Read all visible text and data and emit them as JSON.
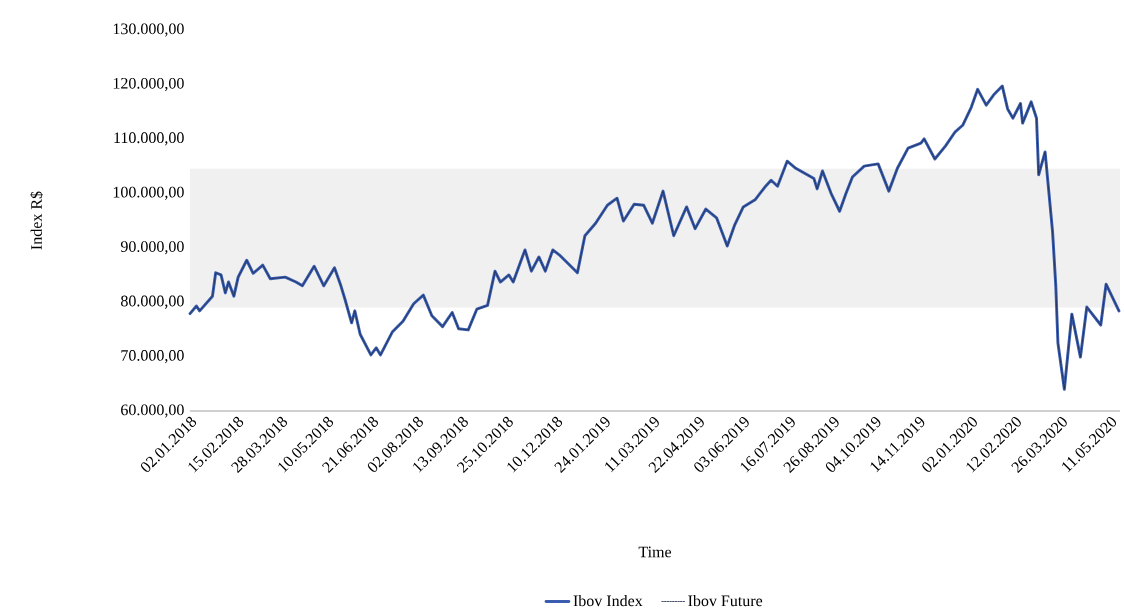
{
  "chart_data": {
    "type": "line",
    "xlabel": "Time",
    "ylabel": "Index R$",
    "legend": "bottom",
    "marker": "none",
    "x": [
      "2018-01-02",
      "2018-01-08",
      "2018-01-11",
      "2018-01-23",
      "2018-01-26",
      "2018-01-31",
      "2018-02-04",
      "2018-02-07",
      "2018-02-12",
      "2018-02-16",
      "2018-02-24",
      "2018-03-02",
      "2018-03-11",
      "2018-03-18",
      "2018-04-01",
      "2018-04-11",
      "2018-04-17",
      "2018-04-28",
      "2018-05-07",
      "2018-05-17",
      "2018-05-23",
      "2018-05-27",
      "2018-06-02",
      "2018-06-05",
      "2018-06-10",
      "2018-06-20",
      "2018-06-25",
      "2018-06-29",
      "2018-07-10",
      "2018-07-20",
      "2018-07-30",
      "2018-08-08",
      "2018-08-16",
      "2018-08-26",
      "2018-09-04",
      "2018-09-10",
      "2018-09-19",
      "2018-09-27",
      "2018-10-07",
      "2018-10-14",
      "2018-10-19",
      "2018-10-27",
      "2018-10-31",
      "2018-11-11",
      "2018-11-17",
      "2018-11-24",
      "2018-11-30",
      "2018-12-07",
      "2018-12-13",
      "2018-12-30",
      "2019-01-06",
      "2019-01-16",
      "2019-01-27",
      "2019-02-05",
      "2019-02-11",
      "2019-02-21",
      "2019-03-02",
      "2019-03-10",
      "2019-03-20",
      "2019-03-30",
      "2019-04-11",
      "2019-04-19",
      "2019-04-29",
      "2019-05-09",
      "2019-05-19",
      "2019-05-26",
      "2019-06-03",
      "2019-06-14",
      "2019-06-23",
      "2019-06-29",
      "2019-07-05",
      "2019-07-14",
      "2019-07-22",
      "2019-08-08",
      "2019-08-11",
      "2019-08-16",
      "2019-08-24",
      "2019-09-01",
      "2019-09-07",
      "2019-09-13",
      "2019-09-24",
      "2019-10-07",
      "2019-10-17",
      "2019-10-25",
      "2019-11-04",
      "2019-11-16",
      "2019-11-19",
      "2019-11-29",
      "2019-12-09",
      "2019-12-18",
      "2019-12-25",
      "2020-01-02",
      "2020-01-08",
      "2020-01-16",
      "2020-01-23",
      "2020-01-31",
      "2020-02-05",
      "2020-02-10",
      "2020-02-17",
      "2020-02-19",
      "2020-02-27",
      "2020-03-03",
      "2020-03-05",
      "2020-03-11",
      "2020-03-18",
      "2020-03-21",
      "2020-03-23",
      "2020-03-29",
      "2020-04-05",
      "2020-04-13",
      "2020-04-19",
      "2020-05-02",
      "2020-05-07",
      "2020-05-19"
    ],
    "series": [
      {
        "name": "Ibov Index",
        "color": "#3a5daf",
        "line_style": "solid",
        "values": [
          77900,
          79300,
          78400,
          81100,
          85400,
          85000,
          81700,
          83700,
          81100,
          84600,
          87700,
          85300,
          86800,
          84300,
          84600,
          83700,
          83000,
          86600,
          83000,
          86300,
          83000,
          80400,
          76200,
          78400,
          74100,
          70300,
          71600,
          70300,
          74500,
          76500,
          79700,
          81300,
          77500,
          75500,
          78100,
          75100,
          74900,
          78700,
          79400,
          85700,
          83700,
          85000,
          83700,
          89600,
          85700,
          88300,
          85700,
          89600,
          88700,
          85400,
          92200,
          94500,
          97800,
          99100,
          94900,
          98000,
          97800,
          94500,
          100400,
          92200,
          97500,
          93500,
          97100,
          95500,
          90300,
          94200,
          97500,
          98800,
          101100,
          102400,
          101300,
          105900,
          104600,
          102700,
          100800,
          104100,
          100000,
          96700,
          100000,
          103000,
          105000,
          105400,
          100400,
          104600,
          108300,
          109200,
          110000,
          106300,
          108700,
          111300,
          112500,
          115800,
          119100,
          116200,
          118100,
          119700,
          115500,
          113800,
          116500,
          112900,
          116800,
          113800,
          103400,
          107600,
          92900,
          83000,
          72500,
          64000,
          77800,
          69900,
          79100,
          75800,
          83300,
          78400
        ]
      },
      {
        "name": "Ibov Future",
        "color": "#1c2a4a",
        "line_style": "dashed",
        "values": [
          77900,
          79300,
          78400,
          81100,
          85400,
          85000,
          81700,
          83700,
          81100,
          84600,
          87700,
          85300,
          86800,
          84300,
          84600,
          83700,
          83000,
          86600,
          83000,
          86300,
          83000,
          80400,
          76200,
          78400,
          74100,
          70300,
          71600,
          70300,
          74500,
          76500,
          79700,
          81300,
          77500,
          75500,
          78100,
          75100,
          74900,
          78700,
          79400,
          85700,
          83700,
          85000,
          83700,
          89600,
          85700,
          88300,
          85700,
          89600,
          88700,
          85400,
          92200,
          94500,
          97800,
          99100,
          94900,
          98000,
          97800,
          94500,
          100400,
          92200,
          97500,
          93500,
          97100,
          95500,
          90300,
          94200,
          97500,
          98800,
          101100,
          102400,
          101300,
          105900,
          104600,
          102700,
          100800,
          104100,
          100000,
          96700,
          100000,
          103000,
          105000,
          105400,
          100400,
          104600,
          108300,
          109200,
          110000,
          106300,
          108700,
          111300,
          112500,
          115800,
          119100,
          116200,
          118100,
          119700,
          115500,
          113800,
          116500,
          112900,
          116800,
          113800,
          103400,
          107600,
          92900,
          83000,
          72500,
          64000,
          77800,
          69900,
          79100,
          75800,
          83300,
          78400
        ]
      }
    ],
    "xlim": [
      "2018-01-02",
      "2020-05-20"
    ],
    "xticks": [
      {
        "value": "2018-01-02",
        "label": "02.01.2018"
      },
      {
        "value": "2018-02-15",
        "label": "15.02.2018"
      },
      {
        "value": "2018-03-28",
        "label": "28.03.2018"
      },
      {
        "value": "2018-05-10",
        "label": "10.05.2018"
      },
      {
        "value": "2018-06-21",
        "label": "21.06.2018"
      },
      {
        "value": "2018-08-02",
        "label": "02.08.2018"
      },
      {
        "value": "2018-09-13",
        "label": "13.09.2018"
      },
      {
        "value": "2018-10-25",
        "label": "25.10.2018"
      },
      {
        "value": "2018-12-10",
        "label": "10.12.2018"
      },
      {
        "value": "2019-01-24",
        "label": "24.01.2019"
      },
      {
        "value": "2019-03-11",
        "label": "11.03.2019"
      },
      {
        "value": "2019-04-22",
        "label": "22.04.2019"
      },
      {
        "value": "2019-06-03",
        "label": "03.06.2019"
      },
      {
        "value": "2019-07-16",
        "label": "16.07.2019"
      },
      {
        "value": "2019-08-26",
        "label": "26.08.2019"
      },
      {
        "value": "2019-10-04",
        "label": "04.10.2019"
      },
      {
        "value": "2019-11-14",
        "label": "14.11.2019"
      },
      {
        "value": "2020-01-02",
        "label": "02.01.2020"
      },
      {
        "value": "2020-02-12",
        "label": "12.02.2020"
      },
      {
        "value": "2020-03-26",
        "label": "26.03.2020"
      },
      {
        "value": "2020-05-11",
        "label": "11.05.2020"
      }
    ],
    "ylim": [
      60000,
      130000
    ],
    "yticks": [
      {
        "value": 60000,
        "label": "60.000,00"
      },
      {
        "value": 70000,
        "label": "70.000,00"
      },
      {
        "value": 80000,
        "label": "80.000,00"
      },
      {
        "value": 90000,
        "label": "90.000,00"
      },
      {
        "value": 100000,
        "label": "100.000,00"
      },
      {
        "value": 110000,
        "label": "110.000,00"
      },
      {
        "value": 120000,
        "label": "120.000,00"
      },
      {
        "value": 130000,
        "label": "130.000,00"
      }
    ],
    "bands": [
      {
        "axis": "y",
        "from": 79000,
        "to": 104500,
        "color": "#f0f0f0"
      }
    ]
  }
}
